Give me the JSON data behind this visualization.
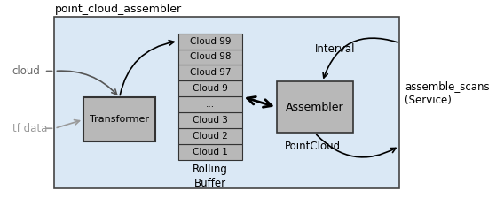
{
  "title": "point_cloud_assembler",
  "bg_color": "#dae8f5",
  "box_bg": "#b8b8b8",
  "box_edge": "#333333",
  "transformer_label": "Transformer",
  "assembler_label": "Assembler",
  "rolling_buffer_label": "Rolling\nBuffer",
  "cloud_label": "cloud",
  "tfdata_label": "tf data",
  "interval_label": "Interval",
  "pointcloud_label": "PointCloud",
  "service_label": "assemble_scans\n(Service)",
  "cloud_items": [
    "Cloud 1",
    "Cloud 2",
    "Cloud 3",
    "...",
    "Cloud 9",
    "Cloud 97",
    "Cloud 98",
    "Cloud 99"
  ],
  "figsize": [
    5.59,
    2.33
  ],
  "dpi": 100
}
